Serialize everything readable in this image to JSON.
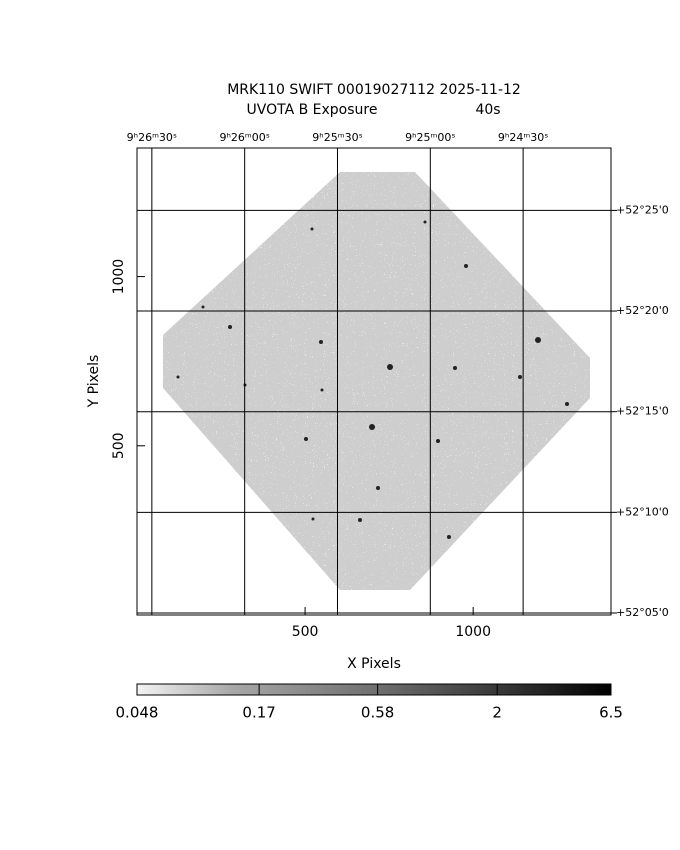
{
  "chart_data": {
    "type": "image",
    "title": "MRK110 SWIFT 00019027112 2025-11-12",
    "subtitle": "UVOTA B Exposure",
    "exposure": "40s",
    "xlabel": "X Pixels",
    "ylabel": "Y Pixels",
    "xlim": [
      0,
      1410
    ],
    "ylim": [
      0,
      1380
    ],
    "xticks": [
      500,
      1000
    ],
    "yticks": [
      500,
      1000
    ],
    "x2lim": [
      33994.8,
      33841.6
    ],
    "x2ticks": [
      {
        "value": 33990,
        "label": "9ʰ26ᵐ30ˢ"
      },
      {
        "value": 33960,
        "label": "9ʰ26ᵐ00ˢ"
      },
      {
        "value": 33930,
        "label": "9ʰ25ᵐ30ˢ"
      },
      {
        "value": 33900,
        "label": "9ʰ25ᵐ00ˢ"
      },
      {
        "value": 33870,
        "label": "9ʰ24ᵐ30ˢ"
      }
    ],
    "y2lim": [
      3124.9,
      3148.1
    ],
    "y2ticks": [
      {
        "value": 3145,
        "label": "+52°25'0"
      },
      {
        "value": 3140,
        "label": "+52°20'0"
      },
      {
        "value": 3135,
        "label": "+52°15'0"
      },
      {
        "value": 3130,
        "label": "+52°10'0"
      },
      {
        "value": 3125,
        "label": "+52°05'0"
      }
    ],
    "grid": true,
    "colorbar": {
      "lim": [
        0.048,
        6.5
      ],
      "log": true,
      "ticks": [
        0.048,
        0.17,
        0.58,
        2,
        6.5
      ]
    }
  }
}
